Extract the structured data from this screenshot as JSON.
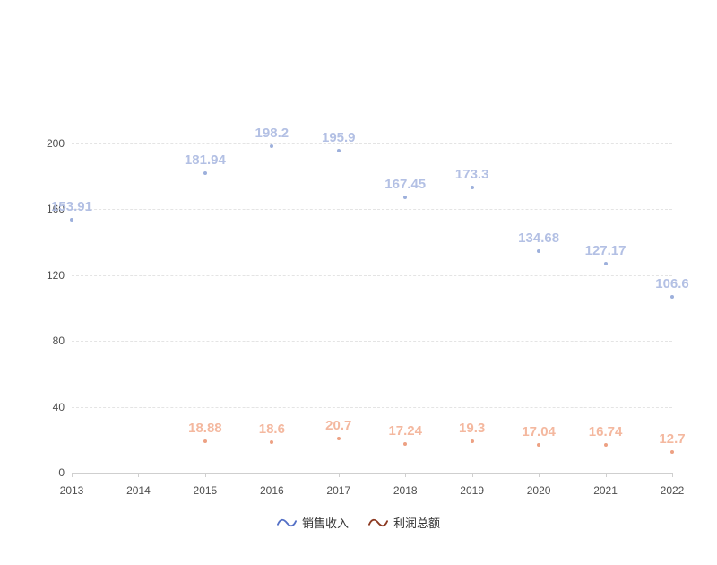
{
  "chart_data": {
    "type": "scatter",
    "title": "",
    "xlabel": "",
    "ylabel": "",
    "categories": [
      "2013",
      "2014",
      "2015",
      "2016",
      "2017",
      "2018",
      "2019",
      "2020",
      "2021",
      "2022"
    ],
    "series": [
      {
        "name": "销售收入",
        "color": "#5470c6",
        "faded_label_color": "#b3c0e4",
        "faded_dot_color": "#9db0dc",
        "values": [
          153.91,
          null,
          181.94,
          198.2,
          195.9,
          167.45,
          173.3,
          134.68,
          127.17,
          106.6
        ]
      },
      {
        "name": "利润总额",
        "color": "#8c3a22",
        "faded_label_color": "#f4b89f",
        "faded_dot_color": "#eda183",
        "values": [
          null,
          null,
          18.88,
          18.6,
          20.7,
          17.24,
          19.3,
          17.04,
          16.74,
          12.7
        ]
      }
    ],
    "y_ticks": [
      0,
      40,
      80,
      120,
      160,
      200
    ],
    "ylim": [
      0,
      220
    ],
    "grid": "horizontal-dashed",
    "legend_position": "bottom-center"
  }
}
